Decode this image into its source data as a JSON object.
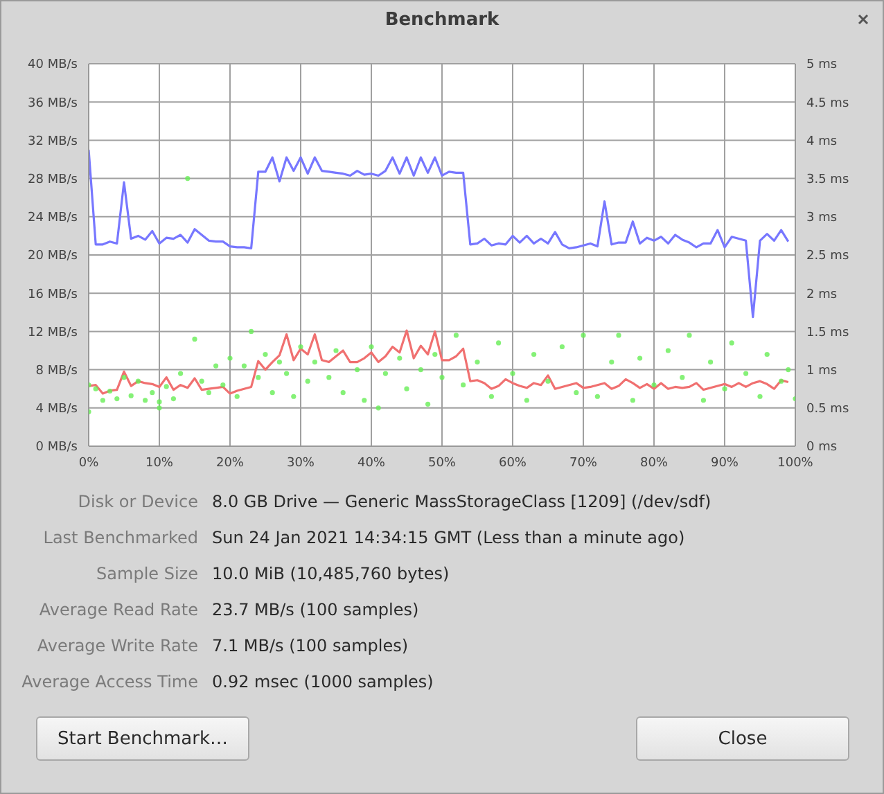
{
  "chart_data": {
    "type": "line",
    "title": "Benchmark",
    "xlim": [
      0,
      100
    ],
    "xticks": [
      {
        "value": 0,
        "label": "0%"
      },
      {
        "value": 10,
        "label": "10%"
      },
      {
        "value": 20,
        "label": "20%"
      },
      {
        "value": 30,
        "label": "30%"
      },
      {
        "value": 40,
        "label": "40%"
      },
      {
        "value": 50,
        "label": "50%"
      },
      {
        "value": 60,
        "label": "60%"
      },
      {
        "value": 70,
        "label": "70%"
      },
      {
        "value": 80,
        "label": "80%"
      },
      {
        "value": 90,
        "label": "90%"
      },
      {
        "value": 100,
        "label": "100%"
      }
    ],
    "ylim": [
      0,
      40
    ],
    "yticks": [
      {
        "value": 0,
        "label": "0 MB/s"
      },
      {
        "value": 4,
        "label": "4 MB/s"
      },
      {
        "value": 8,
        "label": "8 MB/s"
      },
      {
        "value": 12,
        "label": "12 MB/s"
      },
      {
        "value": 16,
        "label": "16 MB/s"
      },
      {
        "value": 20,
        "label": "20 MB/s"
      },
      {
        "value": 24,
        "label": "24 MB/s"
      },
      {
        "value": 28,
        "label": "28 MB/s"
      },
      {
        "value": 32,
        "label": "32 MB/s"
      },
      {
        "value": 36,
        "label": "36 MB/s"
      },
      {
        "value": 40,
        "label": "40 MB/s"
      }
    ],
    "y2lim": [
      0,
      5
    ],
    "y2ticks": [
      {
        "value": 0,
        "label": "0 ms"
      },
      {
        "value": 0.5,
        "label": "0.5 ms"
      },
      {
        "value": 1,
        "label": "1 ms"
      },
      {
        "value": 1.5,
        "label": "1.5 ms"
      },
      {
        "value": 2,
        "label": "2 ms"
      },
      {
        "value": 2.5,
        "label": "2.5 ms"
      },
      {
        "value": 3,
        "label": "3 ms"
      },
      {
        "value": 3.5,
        "label": "3.5 ms"
      },
      {
        "value": 4,
        "label": "4 ms"
      },
      {
        "value": 4.5,
        "label": "4.5 ms"
      },
      {
        "value": 5,
        "label": "5 ms"
      }
    ],
    "grid": true,
    "series": [
      {
        "type": "line",
        "color": "#7777ff",
        "x": [
          0,
          1,
          2,
          3,
          4,
          5,
          6,
          7,
          8,
          9,
          10,
          11,
          12,
          13,
          14,
          15,
          16,
          17,
          18,
          19,
          20,
          21,
          22,
          23,
          24,
          25,
          26,
          27,
          28,
          29,
          30,
          31,
          32,
          33,
          34,
          35,
          36,
          37,
          38,
          39,
          40,
          41,
          42,
          43,
          44,
          45,
          46,
          47,
          48,
          49,
          50,
          51,
          52,
          53,
          54,
          55,
          56,
          57,
          58,
          59,
          60,
          61,
          62,
          63,
          64,
          65,
          66,
          67,
          68,
          69,
          70,
          71,
          72,
          73,
          74,
          75,
          76,
          77,
          78,
          79,
          80,
          81,
          82,
          83,
          84,
          85,
          86,
          87,
          88,
          89,
          90,
          91,
          92,
          93,
          94,
          95,
          96,
          97,
          98,
          99
        ],
        "values": [
          31,
          21.1,
          21.1,
          21.4,
          21.2,
          27.6,
          21.7,
          22,
          21.6,
          22.5,
          21.2,
          21.8,
          21.7,
          22.1,
          21.3,
          22.7,
          22.1,
          21.5,
          21.4,
          21.4,
          20.9,
          20.8,
          20.8,
          20.7,
          28.7,
          28.7,
          30.2,
          27.7,
          30.2,
          28.8,
          30.2,
          28.5,
          30.2,
          28.8,
          28.7,
          28.6,
          28.5,
          28.3,
          28.8,
          28.4,
          28.5,
          28.3,
          28.8,
          30.2,
          28.5,
          30.2,
          28.3,
          30.2,
          28.6,
          30.2,
          28.3,
          28.7,
          28.6,
          28.6,
          21.1,
          21.2,
          21.7,
          21,
          21.2,
          21.1,
          22,
          21.3,
          22,
          21.2,
          21.7,
          21.2,
          22.4,
          21.1,
          20.7,
          20.8,
          21,
          21.2,
          20.9,
          25.6,
          21.1,
          21.3,
          21.3,
          23.5,
          21.2,
          21.8,
          21.5,
          21.9,
          21.2,
          22.1,
          21.6,
          21.3,
          20.8,
          21.2,
          21.2,
          22.6,
          20.8,
          21.9,
          21.7,
          21.5,
          13.5,
          21.5,
          22.2,
          21.5,
          22.6,
          21.4
        ]
      },
      {
        "type": "line",
        "color": "#f07070",
        "x": [
          0,
          1,
          2,
          3,
          4,
          5,
          6,
          7,
          8,
          9,
          10,
          11,
          12,
          13,
          14,
          15,
          16,
          17,
          18,
          19,
          20,
          21,
          22,
          23,
          24,
          25,
          26,
          27,
          28,
          29,
          30,
          31,
          32,
          33,
          34,
          35,
          36,
          37,
          38,
          39,
          40,
          41,
          42,
          43,
          44,
          45,
          46,
          47,
          48,
          49,
          50,
          51,
          52,
          53,
          54,
          55,
          56,
          57,
          58,
          59,
          60,
          61,
          62,
          63,
          64,
          65,
          66,
          67,
          68,
          69,
          70,
          71,
          72,
          73,
          74,
          75,
          76,
          77,
          78,
          79,
          80,
          81,
          82,
          83,
          84,
          85,
          86,
          87,
          88,
          89,
          90,
          91,
          92,
          93,
          94,
          95,
          96,
          97,
          98,
          99
        ],
        "values": [
          6.3,
          6.4,
          5.5,
          5.8,
          5.9,
          7.8,
          6.3,
          6.8,
          6.6,
          6.5,
          6.2,
          7.2,
          5.9,
          6.4,
          6.1,
          7.1,
          5.9,
          6,
          6.1,
          6.2,
          5.5,
          5.8,
          6,
          6.2,
          8.9,
          8,
          8.8,
          9.5,
          11.7,
          9,
          10.2,
          9.6,
          11.7,
          9,
          8.8,
          9.4,
          10,
          8.8,
          8.8,
          9.2,
          9.8,
          8.8,
          9.4,
          10.4,
          9.8,
          12.1,
          9.2,
          10.5,
          9.6,
          12,
          9,
          9,
          9.4,
          10.2,
          6.8,
          6.9,
          6.6,
          6,
          6.3,
          7,
          6.6,
          6.3,
          6.1,
          6.6,
          6.4,
          7.4,
          6,
          6.2,
          6.4,
          6.6,
          6.1,
          6.2,
          6.4,
          6.6,
          6,
          6.3,
          7,
          6.6,
          6.1,
          6.5,
          6,
          6.6,
          6,
          6.2,
          6.1,
          6.2,
          6.6,
          5.9,
          6.1,
          6.3,
          6.5,
          6.2,
          6.6,
          6.2,
          6.6,
          6.8,
          6.5,
          6,
          6.9,
          6.7
        ]
      },
      {
        "type": "scatter",
        "axis": "y2",
        "color": "#66ee55",
        "marker": "circle",
        "x": [
          0,
          0,
          1,
          2,
          3,
          4,
          5,
          6,
          7,
          8,
          9,
          10,
          10,
          11,
          12,
          13,
          14,
          15,
          16,
          17,
          18,
          19,
          20,
          21,
          22,
          23,
          24,
          25,
          26,
          27,
          28,
          29,
          30,
          31,
          32,
          34,
          35,
          36,
          38,
          39,
          40,
          41,
          42,
          44,
          45,
          47,
          48,
          49,
          50,
          52,
          53,
          55,
          57,
          58,
          60,
          62,
          63,
          65,
          67,
          69,
          70,
          72,
          74,
          75,
          77,
          78,
          80,
          82,
          84,
          85,
          87,
          88,
          90,
          91,
          93,
          95,
          96,
          98,
          99,
          100
        ],
        "values": [
          0.45,
          0.8,
          0.75,
          0.6,
          0.72,
          0.62,
          0.9,
          0.66,
          0.85,
          0.6,
          0.7,
          0.58,
          0.5,
          0.78,
          0.62,
          0.95,
          3.5,
          1.4,
          0.85,
          0.7,
          1.05,
          0.8,
          1.15,
          0.65,
          1.05,
          1.5,
          0.9,
          1.2,
          0.7,
          1.1,
          0.95,
          0.65,
          1.3,
          0.85,
          1.1,
          0.9,
          1.25,
          0.7,
          1,
          0.6,
          1.3,
          0.5,
          0.95,
          1.15,
          0.75,
          1,
          0.55,
          1.2,
          0.9,
          1.45,
          0.8,
          1.1,
          0.65,
          1.35,
          0.95,
          0.6,
          1.2,
          0.85,
          1.3,
          0.7,
          1.45,
          0.65,
          1.1,
          1.45,
          0.6,
          1.15,
          0.8,
          1.25,
          0.9,
          1.45,
          0.6,
          1.1,
          0.75,
          1.35,
          0.95,
          0.65,
          1.2,
          0.85,
          1,
          0.62
        ]
      }
    ],
    "annotations": [
      "Disk or Device",
      "8.0 GB Drive — Generic MassStorageClass [1209] (/dev/sdf)",
      "Last Benchmarked",
      "Sun 24 Jan 2021 14:34:15 GMT (Less than a minute ago)",
      "Sample Size",
      "10.0 MiB (10,485,760 bytes)",
      "Average Read Rate",
      "23.7 MB/s (100 samples)",
      "Average Write Rate",
      "7.1 MB/s (100 samples)",
      "Average Access Time",
      "0.92 msec (1000 samples)",
      "Start Benchmark…",
      "Close"
    ]
  }
}
